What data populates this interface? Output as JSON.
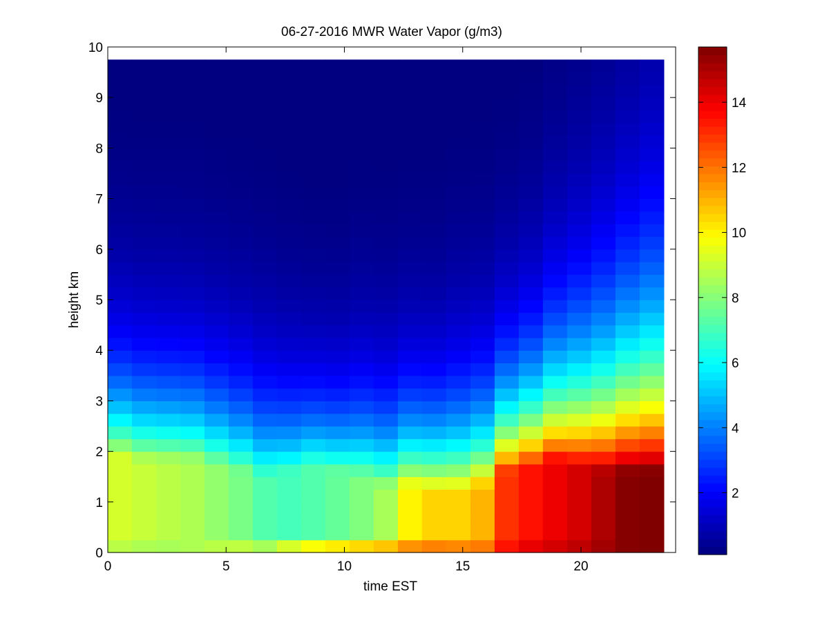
{
  "chart_data": {
    "type": "heatmap",
    "title": "06-27-2016 MWR Water Vapor (g/m3)",
    "xlabel": "time EST",
    "ylabel": "height km",
    "xlim": [
      0,
      24
    ],
    "ylim": [
      0,
      10
    ],
    "xticks": [
      0,
      5,
      10,
      15,
      20
    ],
    "yticks": [
      0,
      1,
      2,
      3,
      4,
      5,
      6,
      7,
      8,
      9,
      10
    ],
    "colorbar": {
      "colormap": "jet",
      "range": [
        0.1,
        15.7
      ],
      "ticks": [
        2,
        4,
        6,
        8,
        10,
        12,
        14
      ]
    },
    "data_extent": {
      "time_start": 0,
      "time_end": 23.5,
      "height_top": 9.75
    },
    "time_hours": [
      0.5,
      1.5,
      2.5,
      3.5,
      4.5,
      5.5,
      6.5,
      7.5,
      8.5,
      9.5,
      10.5,
      11.5,
      12.5,
      13.5,
      14.5,
      15.5,
      16.5,
      17.5,
      18.5,
      19.5,
      20.5,
      21.5,
      22.5,
      23.5
    ],
    "surface_wv": [
      8.8,
      8.5,
      8.3,
      8.3,
      8.6,
      9.2,
      9.6,
      9.4,
      10.8,
      11.6,
      12.0,
      12.2,
      12.3,
      12.6,
      12.7,
      12.5,
      12.5,
      13.8,
      14.5,
      14.7,
      15.0,
      15.3,
      15.6,
      15.7
    ],
    "peak_wv": [
      9.2,
      9.2,
      9.0,
      8.8,
      8.6,
      8.2,
      7.8,
      7.2,
      7.0,
      7.2,
      7.5,
      7.9,
      8.5,
      10.0,
      10.5,
      10.5,
      11.0,
      13.0,
      13.5,
      14.0,
      14.4,
      15.0,
      15.6,
      15.7
    ],
    "mixed_layer_top_km": [
      2.0,
      1.9,
      1.8,
      1.8,
      1.8,
      1.7,
      1.6,
      1.5,
      1.6,
      1.7,
      1.6,
      1.5,
      1.3,
      1.3,
      1.2,
      1.2,
      1.3,
      1.6,
      1.7,
      1.8,
      1.7,
      1.6,
      1.6,
      1.6
    ],
    "decay_scale_km": [
      1.6,
      1.6,
      1.6,
      1.6,
      1.6,
      1.6,
      1.6,
      1.6,
      1.5,
      1.4,
      1.4,
      1.5,
      1.5,
      1.5,
      1.5,
      1.6,
      1.6,
      1.6,
      1.7,
      1.9,
      2.1,
      2.3,
      2.5,
      2.7
    ]
  }
}
